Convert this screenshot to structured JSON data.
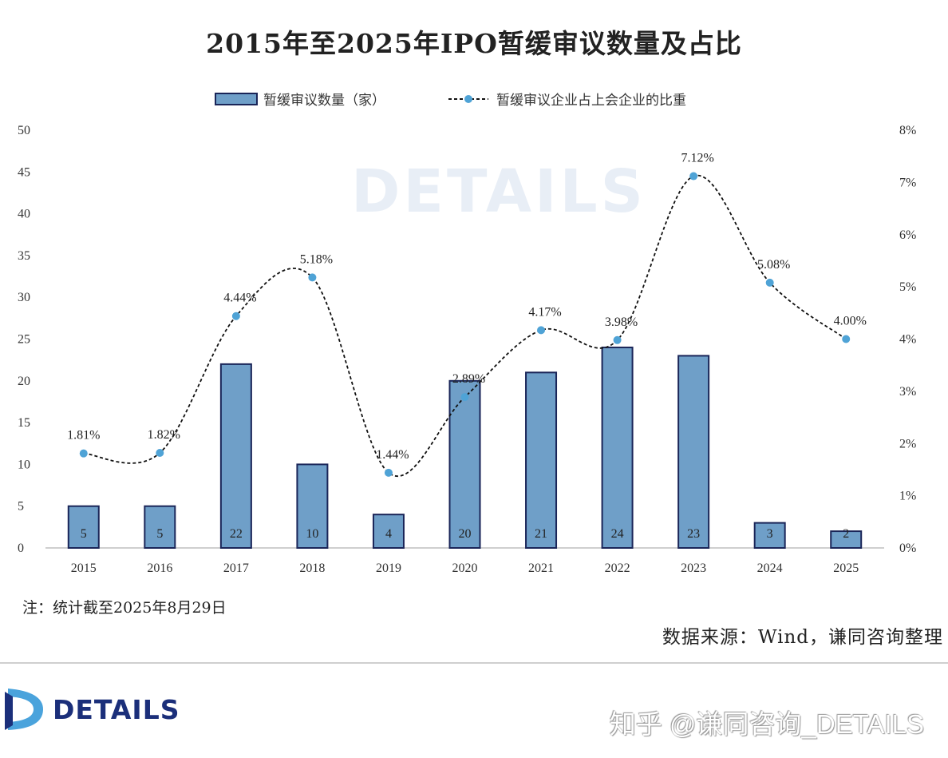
{
  "chart_data": {
    "type": "bar+line",
    "title": "2015年至2025年IPO暂缓审议数量及占比",
    "categories": [
      "2015",
      "2016",
      "2017",
      "2018",
      "2019",
      "2020",
      "2021",
      "2022",
      "2023",
      "2024",
      "2025"
    ],
    "series": [
      {
        "name": "暂缓审议数量（家）",
        "type": "bar",
        "axis": "left",
        "values": [
          5,
          5,
          22,
          10,
          4,
          20,
          21,
          24,
          23,
          3,
          2
        ],
        "color": "#6f9fc8",
        "border": "#1a2558"
      },
      {
        "name": "暂缓审议企业占上会企业的比重",
        "type": "line",
        "axis": "right",
        "style": "dashed-smooth",
        "values": [
          1.81,
          1.82,
          4.44,
          5.18,
          1.44,
          2.89,
          4.17,
          3.98,
          7.12,
          5.08,
          4.0
        ],
        "labels": [
          "1.81%",
          "1.82%",
          "4.44%",
          "5.18%",
          "1.44%",
          "2.89%",
          "4.17%",
          "3.98%",
          "7.12%",
          "5.08%",
          "4.00%"
        ],
        "color": "#111111",
        "marker_color": "#4fa3d6"
      }
    ],
    "y_left": {
      "lim": [
        0,
        50
      ],
      "ticks": [
        "0",
        "5",
        "10",
        "15",
        "20",
        "25",
        "30",
        "35",
        "40",
        "45",
        "50"
      ]
    },
    "y_right": {
      "lim": [
        0,
        8
      ],
      "ticks": [
        "0%",
        "1%",
        "2%",
        "3%",
        "4%",
        "5%",
        "6%",
        "7%",
        "8%"
      ]
    },
    "grid": false,
    "legend": "top"
  },
  "note": "注：统计截至2025年8月29日",
  "source": "数据来源：Wind，谦同咨询整理",
  "watermark": "DETAILS",
  "footer": {
    "logo_text": "DETAILS",
    "zhihu": "知乎 @谦同咨询_DETAILS"
  }
}
